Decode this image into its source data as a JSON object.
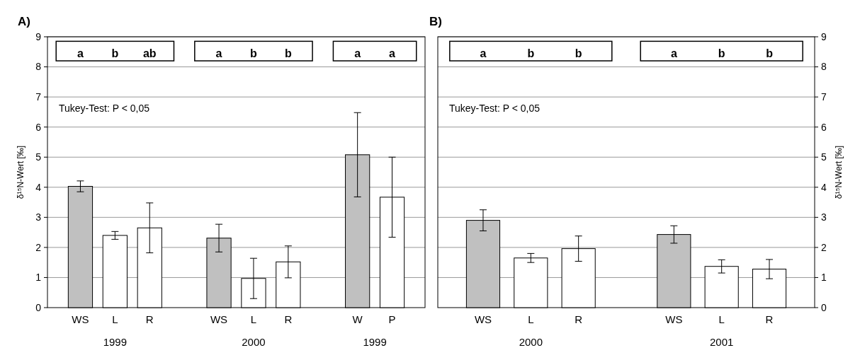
{
  "chart_data": [
    {
      "type": "bar",
      "title": "A)",
      "ylabel": "δ¹⁵N-Wert [‰]",
      "ylim": [
        0,
        9
      ],
      "yticks": [
        0,
        1,
        2,
        3,
        4,
        5,
        6,
        7,
        8,
        9
      ],
      "grid": "y",
      "categories": [
        "WS",
        "L",
        "R",
        null,
        "WS",
        "L",
        "R",
        null,
        "W",
        "P"
      ],
      "series": [
        {
          "values": [
            4.03,
            2.4,
            2.65,
            null,
            2.31,
            0.97,
            1.52,
            null,
            5.08,
            3.67
          ],
          "colors": [
            "#c0c0c0",
            "#ffffff",
            "#ffffff",
            null,
            "#c0c0c0",
            "#ffffff",
            "#ffffff",
            null,
            "#c0c0c0",
            "#ffffff"
          ],
          "errors": [
            0.18,
            0.13,
            0.83,
            null,
            0.46,
            0.67,
            0.53,
            null,
            1.4,
            1.33
          ]
        }
      ],
      "annotations": [
        "Tukey-Test: P < 0,05",
        "a",
        "b",
        "ab",
        "a",
        "b",
        "b",
        "a",
        "a",
        "1999",
        "2000",
        "1999"
      ]
    },
    {
      "type": "bar",
      "title": "B)",
      "y2label": "δ¹⁵N-Wert [‰]",
      "y2lim": [
        0,
        9
      ],
      "y2ticks": [
        0,
        1,
        2,
        3,
        4,
        5,
        6,
        7,
        8,
        9
      ],
      "grid": "y",
      "categories": [
        "WS",
        "L",
        "R",
        null,
        "WS",
        "L",
        "R"
      ],
      "series": [
        {
          "axis": "y2",
          "values": [
            2.9,
            1.65,
            1.96,
            null,
            2.43,
            1.37,
            1.28
          ],
          "colors": [
            "#c0c0c0",
            "#ffffff",
            "#ffffff",
            null,
            "#c0c0c0",
            "#ffffff",
            "#ffffff"
          ],
          "errors": [
            0.35,
            0.15,
            0.42,
            null,
            0.29,
            0.22,
            0.32
          ]
        }
      ],
      "annotations": [
        "Tukey-Test: P < 0,05",
        "a",
        "b",
        "b",
        "a",
        "b",
        "b",
        "2000",
        "2001"
      ]
    }
  ]
}
